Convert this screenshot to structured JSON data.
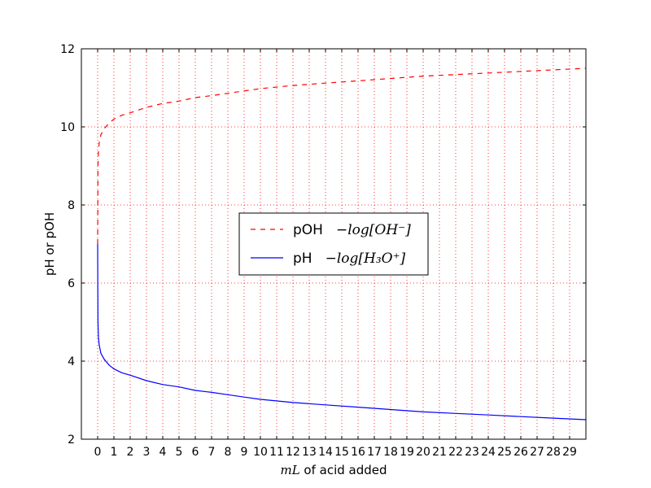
{
  "chart_data": {
    "type": "line",
    "xlabel_math": "mL",
    "xlabel_text": " of acid added",
    "ylabel": "pH or pOH",
    "xlim": [
      -1,
      30
    ],
    "ylim": [
      2,
      12
    ],
    "x_ticks": [
      0,
      1,
      2,
      3,
      4,
      5,
      6,
      7,
      8,
      9,
      10,
      11,
      12,
      13,
      14,
      15,
      16,
      17,
      18,
      19,
      20,
      21,
      22,
      23,
      24,
      25,
      26,
      27,
      28,
      29
    ],
    "y_ticks": [
      2,
      4,
      6,
      8,
      10,
      12
    ],
    "grid": true,
    "legend_position": "center",
    "series": [
      {
        "name": "pOH",
        "formula": "−log[OH⁻]",
        "color": "#ff0000",
        "style": "dashed",
        "x": [
          0,
          0.02,
          0.05,
          0.1,
          0.2,
          0.4,
          0.7,
          1,
          1.5,
          2,
          3,
          4,
          5,
          6,
          7,
          8,
          9,
          10,
          12,
          14,
          16,
          18,
          20,
          22,
          24,
          26,
          28,
          30
        ],
        "y": [
          7.0,
          9.0,
          9.4,
          9.6,
          9.8,
          9.95,
          10.1,
          10.2,
          10.3,
          10.36,
          10.5,
          10.6,
          10.66,
          10.75,
          10.8,
          10.86,
          10.92,
          10.98,
          11.06,
          11.12,
          11.18,
          11.24,
          11.3,
          11.34,
          11.38,
          11.42,
          11.46,
          11.5
        ]
      },
      {
        "name": "pH",
        "formula": "−log[H₃O⁺]",
        "color": "#0000ff",
        "style": "solid",
        "x": [
          0,
          0.02,
          0.05,
          0.1,
          0.2,
          0.4,
          0.7,
          1,
          1.5,
          2,
          3,
          4,
          5,
          6,
          7,
          8,
          9,
          10,
          12,
          14,
          16,
          18,
          20,
          22,
          24,
          26,
          28,
          30
        ],
        "y": [
          7.0,
          5.0,
          4.6,
          4.4,
          4.2,
          4.05,
          3.9,
          3.8,
          3.7,
          3.64,
          3.5,
          3.4,
          3.34,
          3.25,
          3.2,
          3.14,
          3.08,
          3.02,
          2.94,
          2.88,
          2.82,
          2.76,
          2.7,
          2.66,
          2.62,
          2.58,
          2.54,
          2.5
        ]
      }
    ]
  }
}
